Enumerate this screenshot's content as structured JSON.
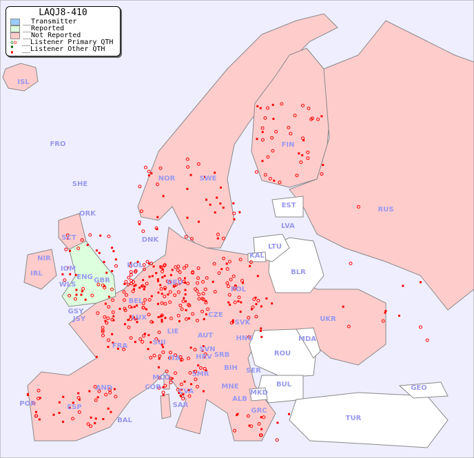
{
  "legend": {
    "title": "LAQJ8-410",
    "items": [
      {
        "label": "__Transmitter",
        "color": "#99ccff"
      },
      {
        "label": "__Reported",
        "color": "#ddffdd"
      },
      {
        "label": "__Not Reported",
        "color": "#ffcccc"
      },
      {
        "label": "__Listener Primary QTH",
        "symbol": "open-circle"
      },
      {
        "label": "__Listener Other QTH",
        "symbol": "filled-square"
      }
    ]
  },
  "colors": {
    "sea": "#eeeeff",
    "not_reported": "#ffcccc",
    "reported": "#ddffdd",
    "no_data": "#ffffff",
    "listener": "#ff0000",
    "label": "#9999ee"
  },
  "countries": [
    "ISL",
    "FRO",
    "SHE",
    "ORK",
    "NOR",
    "SWE",
    "FIN",
    "EST",
    "LVA",
    "LTU",
    "KAL",
    "BLR",
    "RUS",
    "DNK",
    "HOL",
    "BEL",
    "LUX",
    "DEU",
    "POL",
    "CZE",
    "SVK",
    "UKR",
    "MDA",
    "ROU",
    "HNG",
    "AUT",
    "SUI",
    "LIE",
    "FRA",
    "GSY",
    "JSY",
    "GBR",
    "WLS",
    "IOM",
    "IRL",
    "NIR",
    "SCT",
    "ITA",
    "SVN",
    "HRV",
    "BIH",
    "SRB",
    "SER",
    "MNE",
    "ALB",
    "MKD",
    "BUL",
    "GRC",
    "TUR",
    "GEO",
    "MCO",
    "COR",
    "SAR",
    "CVA",
    "SMR",
    "ESP",
    "POR",
    "AND",
    "BAL",
    "ENG"
  ]
}
